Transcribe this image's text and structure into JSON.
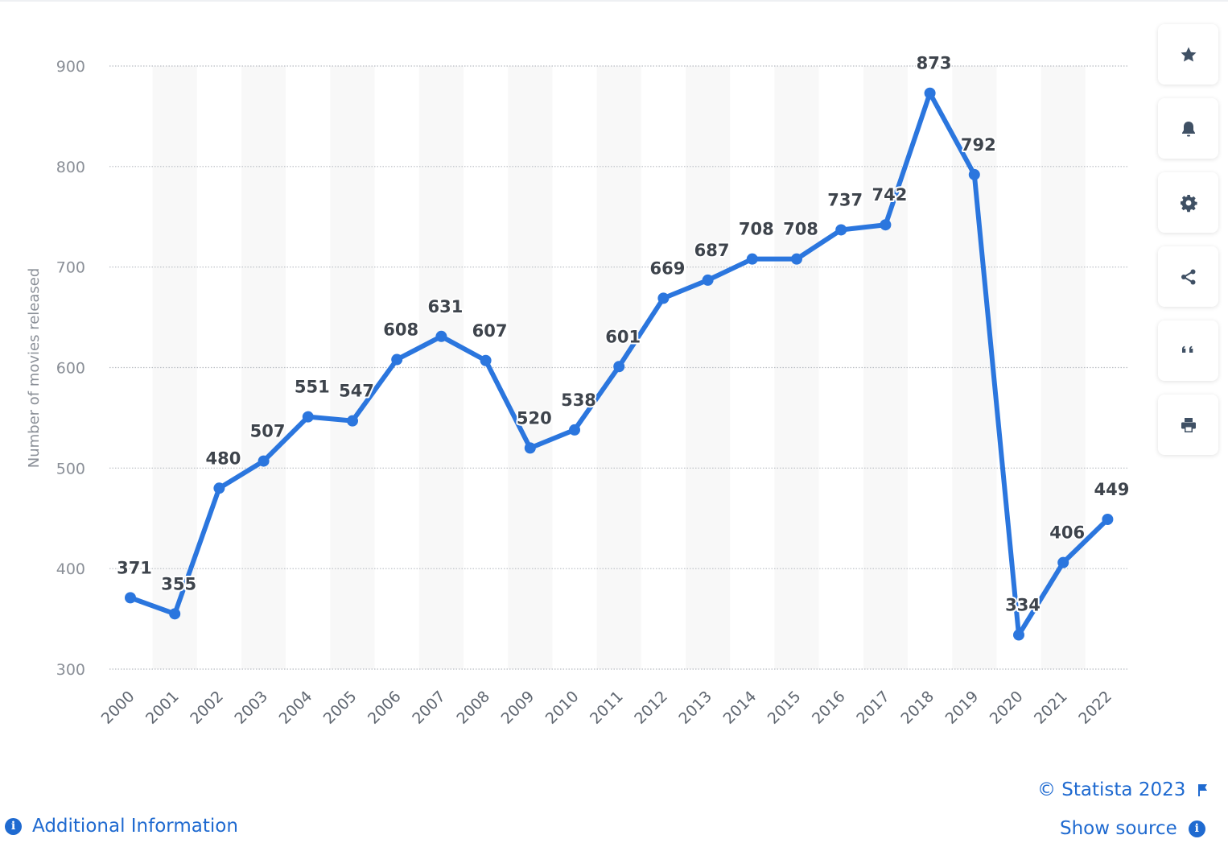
{
  "chart_data": {
    "type": "line",
    "categories": [
      "2000",
      "2001",
      "2002",
      "2003",
      "2004",
      "2005",
      "2006",
      "2007",
      "2008",
      "2009",
      "2010",
      "2011",
      "2012",
      "2013",
      "2014",
      "2015",
      "2016",
      "2017",
      "2018",
      "2019",
      "2020",
      "2021",
      "2022"
    ],
    "series": [
      {
        "values": [
          371,
          355,
          480,
          507,
          551,
          547,
          608,
          631,
          607,
          520,
          538,
          601,
          669,
          687,
          708,
          708,
          737,
          742,
          873,
          792,
          334,
          406,
          449
        ]
      }
    ],
    "ylabel": "Number of movies released",
    "xlabel": "",
    "ylim": [
      300,
      900
    ],
    "yticks": [
      300,
      400,
      500,
      600,
      700,
      800,
      900
    ],
    "line_color": "#2b76de",
    "grid": true,
    "data_labels": true
  },
  "toolbar": {
    "buttons": [
      {
        "icon": "star-icon"
      },
      {
        "icon": "bell-icon"
      },
      {
        "icon": "gear-icon"
      },
      {
        "icon": "share-icon"
      },
      {
        "icon": "quote-icon"
      },
      {
        "icon": "print-icon"
      }
    ]
  },
  "footer": {
    "copyright": "© Statista 2023",
    "additional_info": "Additional Information",
    "show_source": "Show source",
    "link_color": "#1f6ad0"
  }
}
